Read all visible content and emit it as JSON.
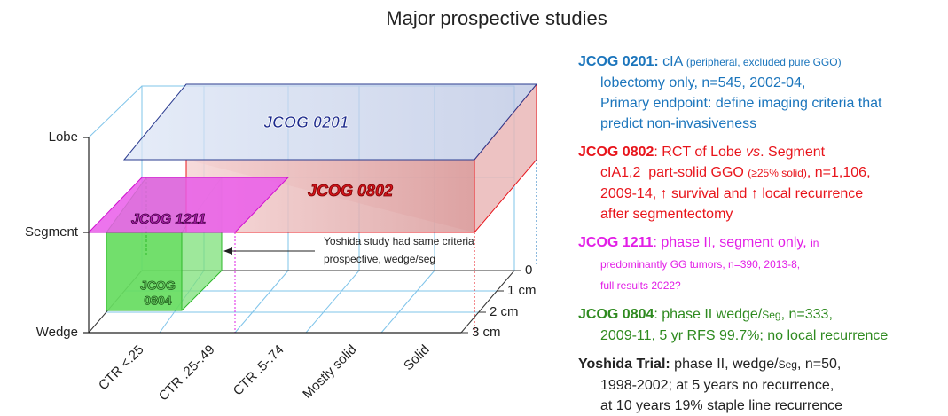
{
  "title": "Major prospective studies",
  "diagram": {
    "y_labels": [
      "Lobe",
      "Segment",
      "Wedge"
    ],
    "x_labels": [
      "CTR <.25",
      "CTR .25-.49",
      "CTR .5-.74",
      "Mostly solid",
      "Solid"
    ],
    "depth_labels": [
      "0",
      "1 cm",
      "2 cm",
      "3 cm"
    ],
    "boxes": [
      {
        "lines": [
          "JCOG 0201"
        ]
      },
      {
        "lines": [
          "JCOG 0802"
        ]
      },
      {
        "lines": [
          "JCOG 1211"
        ]
      },
      {
        "lines": [
          "JCOG",
          "0804"
        ]
      }
    ],
    "annotation": [
      "Yoshida study had same criteria",
      "prospective, wedge/seg"
    ]
  },
  "studies": [
    {
      "color": "#1b75bc",
      "lines": [
        [
          {
            "text": "JCOG 0201:",
            "style": "bold"
          },
          {
            "text": " cIA "
          },
          {
            "text": "(peripheral, excluded pure GGO)",
            "style": "small"
          }
        ],
        [
          {
            "text": "lobectomy only, n=545, 2002-04,"
          }
        ],
        [
          {
            "text": "Primary endpoint: define imaging criteria that"
          }
        ],
        [
          {
            "text": "predict non-invasiveness"
          }
        ]
      ]
    },
    {
      "color": "#e8141b",
      "lines": [
        [
          {
            "text": "JCOG 0802",
            "style": "bold"
          },
          {
            "text": ": RCT of Lobe "
          },
          {
            "text": "vs",
            "style": "italic"
          },
          {
            "text": ". Segment"
          }
        ],
        [
          {
            "text": "cIA1,2  part-solid GGO "
          },
          {
            "text": "(≥25% solid)",
            "style": "small"
          },
          {
            "text": ", n=1,106,"
          }
        ],
        [
          {
            "text": "2009-14, ↑ survival and ↑ local recurrence"
          }
        ],
        [
          {
            "text": "after segmentectomy"
          }
        ]
      ]
    },
    {
      "color": "#e21ee6",
      "lines": [
        [
          {
            "text": "JCOG 1211",
            "style": "bold"
          },
          {
            "text": ": phase II, segment only, "
          },
          {
            "text": "in",
            "style": "small"
          }
        ],
        [
          {
            "text": "predominantly GG tumors, n=390, 2013-8,",
            "style": "small"
          }
        ],
        [
          {
            "text": "full results 2022?",
            "style": "small"
          }
        ]
      ]
    },
    {
      "color": "#2e8a1f",
      "lines": [
        [
          {
            "text": "JCOG 0804",
            "style": "bold"
          },
          {
            "text": ": phase II wedge/"
          },
          {
            "text": "Seg",
            "style": "small"
          },
          {
            "text": ", n=333,"
          }
        ],
        [
          {
            "text": "2009-11, 5 yr RFS 99.7%; no local recurrence"
          }
        ]
      ]
    },
    {
      "color": "#222222",
      "lines": [
        [
          {
            "text": "Yoshida Trial:",
            "style": "bold"
          },
          {
            "text": " phase II, wedge/"
          },
          {
            "text": "Seg",
            "style": "small"
          },
          {
            "text": ", n=50,"
          }
        ],
        [
          {
            "text": "1998-2002; at 5 years no recurrence,"
          }
        ],
        [
          {
            "text": "at 10 years 19% staple line recurrence"
          }
        ]
      ]
    }
  ]
}
